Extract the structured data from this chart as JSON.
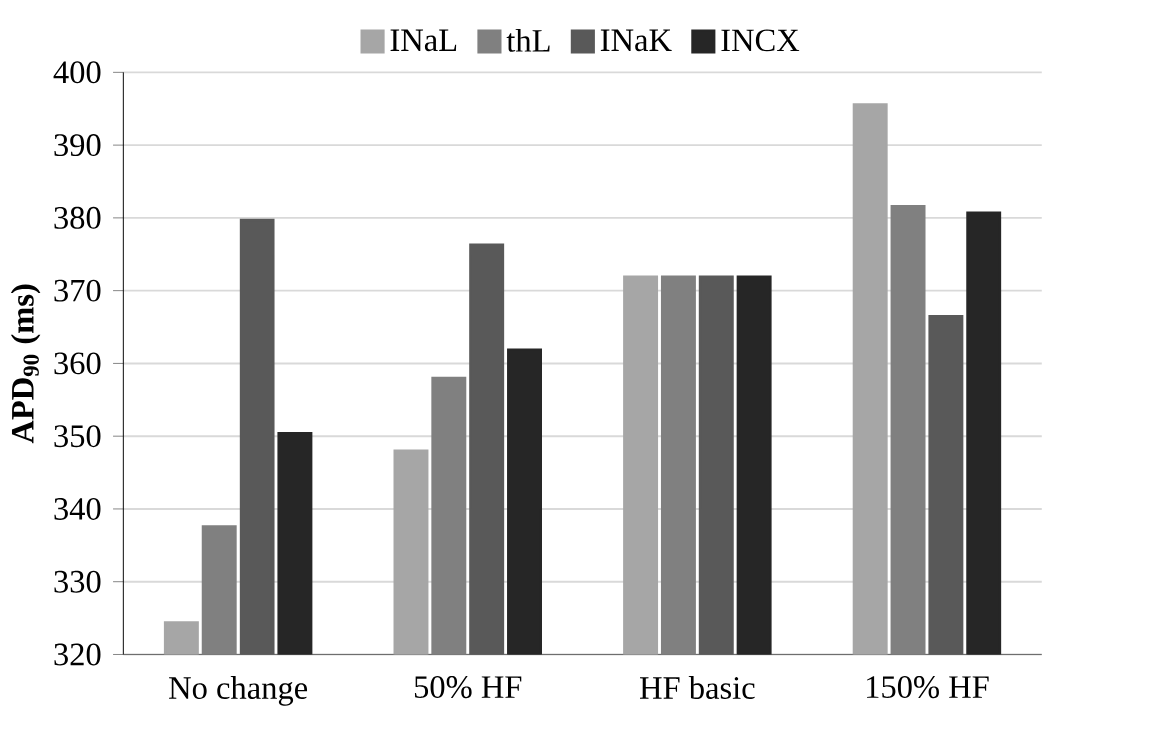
{
  "chart_data": {
    "type": "bar",
    "ylabel": "APD$_{90}$ (ms)",
    "categories": [
      "No change",
      "50% HF",
      "HF basic",
      "150% HF"
    ],
    "series": [
      {
        "name": "INaL",
        "color": "#a6a6a6",
        "values": [
          324.4,
          348,
          371.9,
          395.6
        ]
      },
      {
        "name": "thL",
        "color": "#808080",
        "values": [
          337.6,
          358,
          371.9,
          381.6
        ]
      },
      {
        "name": "INaK",
        "color": "#595959",
        "values": [
          379.7,
          376.3,
          371.9,
          366.5
        ]
      },
      {
        "name": "INCX",
        "color": "#262626",
        "values": [
          350.4,
          361.9,
          371.9,
          380.7
        ]
      }
    ],
    "ylim": [
      320,
      400
    ],
    "yticks": [
      320,
      330,
      340,
      350,
      360,
      370,
      380,
      390,
      400
    ],
    "grid": "y",
    "legend": "top"
  }
}
